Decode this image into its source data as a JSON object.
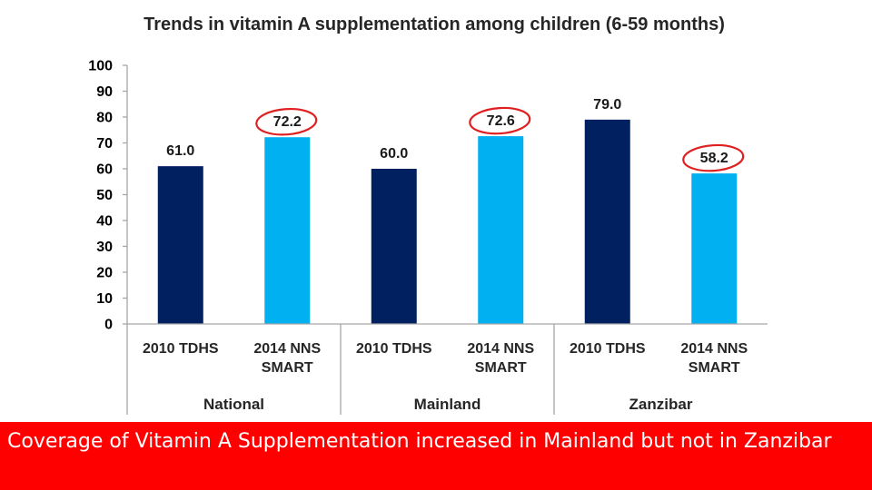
{
  "chart_data": {
    "type": "bar",
    "title": "Trends in vitamin A supplementation among children (6-59 months)",
    "ylim": [
      0,
      100
    ],
    "yticks": [
      0,
      10,
      20,
      30,
      40,
      50,
      60,
      70,
      80,
      90,
      100
    ],
    "xlabel": "",
    "ylabel": "",
    "grid": false,
    "groups": [
      {
        "name": "National",
        "bars": [
          {
            "label": "2010 TDHS",
            "value": 61.0,
            "value_label": "61.0",
            "series": "2010 TDHS",
            "highlighted": false
          },
          {
            "label": "2014 NNS SMART",
            "value": 72.2,
            "value_label": "72.2",
            "series": "2014 NNS SMART",
            "highlighted": true
          }
        ]
      },
      {
        "name": "Mainland",
        "bars": [
          {
            "label": "2010 TDHS",
            "value": 60.0,
            "value_label": "60.0",
            "series": "2010 TDHS",
            "highlighted": false
          },
          {
            "label": "2014 NNS SMART",
            "value": 72.6,
            "value_label": "72.6",
            "series": "2014 NNS SMART",
            "highlighted": true
          }
        ]
      },
      {
        "name": "Zanzibar",
        "bars": [
          {
            "label": "2010 TDHS",
            "value": 79.0,
            "value_label": "79.0",
            "series": "2010 TDHS",
            "highlighted": false
          },
          {
            "label": "2014 NNS SMART",
            "value": 58.2,
            "value_label": "58.2",
            "series": "2014 NNS SMART",
            "highlighted": true
          }
        ]
      }
    ],
    "series_colors": {
      "2010 TDHS": "#002060",
      "2014 NNS SMART": "#00b0f0"
    },
    "highlight_color": "#e02020"
  },
  "caption": {
    "text": "Coverage of Vitamin A Supplementation increased in Mainland but not in Zanzibar",
    "background": "#ff0000",
    "color": "#ffffff"
  }
}
